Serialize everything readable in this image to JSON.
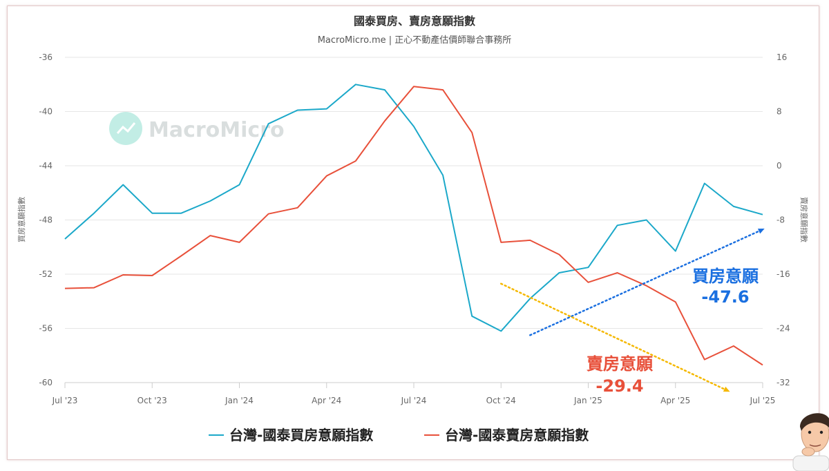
{
  "chart_data": {
    "type": "line",
    "title": "國泰買房、賣房意願指數",
    "subtitle": "MacroMicro.me | 正心不動產估價師聯合事務所",
    "watermark": "MacroMicro",
    "left_axis": {
      "label": "買房意願指數",
      "range": [
        -60,
        -36
      ],
      "ticks": [
        "-36",
        "-40",
        "-44",
        "-48",
        "-52",
        "-56",
        "-60"
      ]
    },
    "right_axis": {
      "label": "賣房意願指數",
      "range": [
        -32,
        16
      ],
      "ticks": [
        "16",
        "8",
        "0",
        "-8",
        "-16",
        "-24",
        "-32"
      ]
    },
    "x_axis": {
      "range": [
        "2023-07",
        "2025-07"
      ],
      "ticks": [
        "Jul '23",
        "Oct '23",
        "Jan '24",
        "Apr '24",
        "Jul '24",
        "Oct '24",
        "Jan '25",
        "Apr '25",
        "Jul '25"
      ]
    },
    "grid": true,
    "legend_position": "bottom",
    "series": [
      {
        "name": "台灣-國泰買房意願指數",
        "axis": "left",
        "color": "#1ba8c9",
        "points": [
          [
            "2023-07",
            -49.4
          ],
          [
            "2023-08",
            -47.5
          ],
          [
            "2023-09",
            -45.4
          ],
          [
            "2023-10",
            -47.5
          ],
          [
            "2023-11",
            -47.5
          ],
          [
            "2023-12",
            -46.6
          ],
          [
            "2024-01",
            -45.4
          ],
          [
            "2024-02",
            -40.9
          ],
          [
            "2024-03",
            -39.9
          ],
          [
            "2024-04",
            -39.8
          ],
          [
            "2024-05",
            -38.0
          ],
          [
            "2024-06",
            -38.4
          ],
          [
            "2024-07",
            -41.1
          ],
          [
            "2024-08",
            -44.7
          ],
          [
            "2024-09",
            -55.1
          ],
          [
            "2024-10",
            -56.2
          ],
          [
            "2024-11",
            -53.8
          ],
          [
            "2024-12",
            -51.9
          ],
          [
            "2025-01",
            -51.5
          ],
          [
            "2025-02",
            -48.4
          ],
          [
            "2025-03",
            -48.0
          ],
          [
            "2025-04",
            -50.3
          ],
          [
            "2025-05",
            -45.3
          ],
          [
            "2025-06",
            -47.0
          ],
          [
            "2025-07",
            -47.6
          ]
        ]
      },
      {
        "name": "台灣-國泰賣房意願指數",
        "axis": "right",
        "color": "#e8503a",
        "points": [
          [
            "2023-07",
            -18.1
          ],
          [
            "2023-08",
            -18.0
          ],
          [
            "2023-09",
            -16.1
          ],
          [
            "2023-10",
            -16.2
          ],
          [
            "2023-11",
            -13.3
          ],
          [
            "2023-12",
            -10.3
          ],
          [
            "2024-01",
            -11.3
          ],
          [
            "2024-02",
            -7.1
          ],
          [
            "2024-03",
            -6.2
          ],
          [
            "2024-04",
            -1.5
          ],
          [
            "2024-05",
            0.7
          ],
          [
            "2024-06",
            6.6
          ],
          [
            "2024-07",
            11.7
          ],
          [
            "2024-08",
            11.2
          ],
          [
            "2024-09",
            4.9
          ],
          [
            "2024-10",
            -11.3
          ],
          [
            "2024-11",
            -11.0
          ],
          [
            "2024-12",
            -13.1
          ],
          [
            "2025-01",
            -17.2
          ],
          [
            "2025-02",
            -15.8
          ],
          [
            "2025-03",
            -17.7
          ],
          [
            "2025-04",
            -20.1
          ],
          [
            "2025-05",
            -28.6
          ],
          [
            "2025-06",
            -26.6
          ],
          [
            "2025-07",
            -29.4
          ]
        ]
      }
    ],
    "annotations": [
      {
        "label": "買房意願",
        "value": "-47.6",
        "color": "#1a6fe0",
        "trend": "up",
        "arrow_color": "#1a6fe0",
        "from": [
          "2024-11",
          -56.5
        ],
        "to": [
          "2025-07",
          -48.7
        ]
      },
      {
        "label": "賣房意願",
        "value": "-29.4",
        "color": "#e8503a",
        "trend": "down",
        "arrow_color": "#f5b800",
        "from": [
          "2024-10",
          -52.7
        ],
        "to": [
          "2025-06",
          -60.9
        ]
      }
    ]
  }
}
